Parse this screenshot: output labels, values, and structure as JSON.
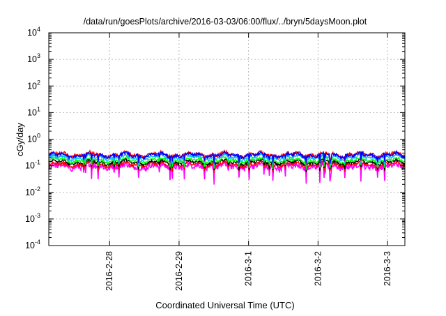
{
  "chart_data": {
    "type": "line",
    "title": "/data/run/goesPlots/archive/2016-03-03/06:00/flux/../bryn/5daysMoon.plot",
    "xlabel": "Coordinated Universal Time (UTC)",
    "ylabel": "cGy/day",
    "x_range": [
      "2016-02-27T03:00",
      "2016-03-03T06:00"
    ],
    "y_scale": "log",
    "ylim": [
      0.0001,
      10000
    ],
    "grid": true,
    "x_ticks": [
      {
        "value": "2016-02-28T00:00",
        "label": "2016-2-28"
      },
      {
        "value": "2016-02-29T00:00",
        "label": "2016-2-29"
      },
      {
        "value": "2016-03-01T00:00",
        "label": "2016-3-1"
      },
      {
        "value": "2016-03-02T00:00",
        "label": "2016-3-2"
      },
      {
        "value": "2016-03-03T00:00",
        "label": "2016-3-3"
      }
    ],
    "y_ticks": [
      {
        "value": 0.0001,
        "base": "10",
        "exp": "-4"
      },
      {
        "value": 0.001,
        "base": "10",
        "exp": "-3"
      },
      {
        "value": 0.01,
        "base": "10",
        "exp": "-2"
      },
      {
        "value": 0.1,
        "base": "10",
        "exp": "-1"
      },
      {
        "value": 1,
        "base": "10",
        "exp": "0"
      },
      {
        "value": 10,
        "base": "10",
        "exp": "1"
      },
      {
        "value": 100,
        "base": "10",
        "exp": "2"
      },
      {
        "value": 1000,
        "base": "10",
        "exp": "3"
      },
      {
        "value": 10000,
        "base": "10",
        "exp": "4"
      }
    ],
    "series": [
      {
        "color": "#ff00ff",
        "base": 0.095,
        "noise": 0.22,
        "dips": true
      },
      {
        "color": "#ff0000",
        "base": 0.112,
        "noise": 0.1,
        "dips": true
      },
      {
        "color": "#000000",
        "base": 0.135,
        "noise": 0.09,
        "dips": true
      },
      {
        "color": "#00ff00",
        "base": 0.16,
        "noise": 0.09,
        "dips": true
      },
      {
        "color": "#00bfff",
        "base": 0.205,
        "noise": 0.1,
        "dips": true
      },
      {
        "color": "#ff0000",
        "base": 0.265,
        "noise": 0.11,
        "dips": true
      },
      {
        "color": "#0000ff",
        "base": 0.25,
        "noise": 0.11,
        "dips": true
      }
    ]
  }
}
